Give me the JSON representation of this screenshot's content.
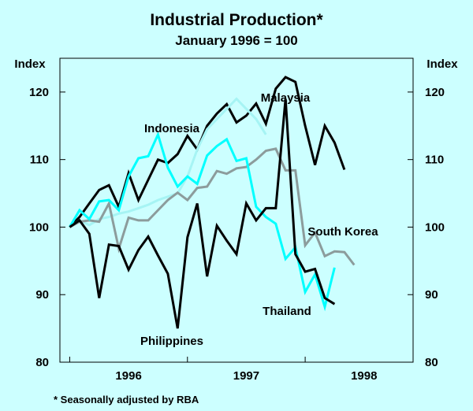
{
  "chart_data": {
    "type": "line",
    "title": "Industrial Production*",
    "subtitle": "January 1996 = 100",
    "ylabel_left": "Index",
    "ylabel_right": "Index",
    "ylim": [
      80,
      125
    ],
    "yticks": [
      80,
      90,
      100,
      110,
      120
    ],
    "xlim": [
      "1995-12",
      "1998-12"
    ],
    "xtick_labels": [
      {
        "label": "1996",
        "center": "1996-07"
      },
      {
        "label": "1997",
        "center": "1997-07"
      },
      {
        "label": "1998",
        "center": "1998-07"
      }
    ],
    "footnote": "* Seasonally adjusted by RBA",
    "grid": false,
    "legend": "inline labels",
    "series": [
      {
        "name": "Malaysia",
        "color": "#000000",
        "x_start": "1996-01",
        "values": [
          100,
          101.5,
          103.5,
          105.5,
          106.2,
          103,
          108,
          104,
          107,
          110,
          109.5,
          110.8,
          113.5,
          111.5,
          115,
          116.8,
          118.2,
          115.5,
          116.5,
          118.3,
          115.3,
          120.5,
          122.2,
          121.5,
          115,
          109.2,
          115,
          112.5,
          108.5
        ]
      },
      {
        "name": "Indonesia",
        "color": "#ccffff",
        "stroke": "#a6f4f4",
        "x_start": "1996-01",
        "values": [
          100,
          101,
          100.3,
          101.2,
          101.5,
          102,
          102.3,
          102.8,
          103.3,
          104,
          104.5,
          105,
          107.5,
          111.5,
          114.5,
          116,
          117.5,
          119,
          117.5,
          116,
          113.7
        ]
      },
      {
        "name": "South Korea",
        "color": "#8c9c9c",
        "x_start": "1996-01",
        "values": [
          100,
          100.8,
          101,
          100.8,
          103.5,
          96.8,
          101.4,
          101,
          101,
          102.5,
          104,
          105.1,
          104,
          105.8,
          106,
          108.3,
          107.9,
          108.7,
          108.9,
          110,
          111.3,
          111.6,
          108.4,
          108.4,
          97.3,
          99.2,
          95.7,
          96.4,
          96.3,
          94.4
        ]
      },
      {
        "name": "Thailand",
        "color": "#00ffff",
        "x_start": "1996-01",
        "values": [
          100,
          102.5,
          101.2,
          103.8,
          104,
          102.5,
          107.5,
          110.2,
          110.5,
          113.7,
          108.8,
          106,
          107.5,
          106.4,
          110.6,
          112,
          113,
          109.8,
          110.2,
          103,
          101.5,
          100.5,
          95.3,
          97,
          90.4,
          93,
          88.2,
          94
        ]
      },
      {
        "name": "Philippines",
        "color": "#000000",
        "x_start": "1996-01",
        "values": [
          100,
          101,
          99,
          89.5,
          97.4,
          97.2,
          93.7,
          96.6,
          98.6,
          95.8,
          93.1,
          85,
          98.5,
          103.5,
          92.7,
          100.2,
          98,
          96,
          103.5,
          101,
          102.8,
          102.8,
          119,
          96,
          93.4,
          93.8,
          89.5,
          88.6
        ]
      }
    ],
    "annotations": [
      {
        "text": "Malaysia",
        "series": "Malaysia"
      },
      {
        "text": "Indonesia",
        "series": "Indonesia"
      },
      {
        "text": "South Korea",
        "series": "South Korea"
      },
      {
        "text": "Thailand",
        "series": "Thailand"
      },
      {
        "text": "Philippines",
        "series": "Philippines"
      }
    ]
  }
}
